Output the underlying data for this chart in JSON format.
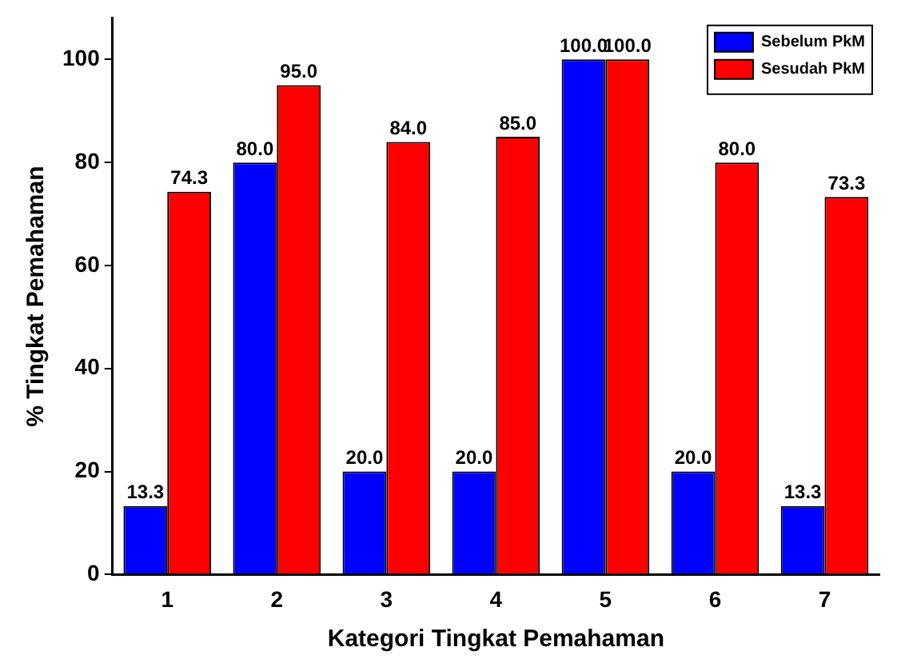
{
  "chart_data": {
    "type": "bar",
    "xlabel": "Kategori Tingkat Pemahaman",
    "ylabel": "% Tingkat Pemahaman",
    "categories": [
      "1",
      "2",
      "3",
      "4",
      "5",
      "6",
      "7"
    ],
    "series": [
      {
        "name": "Sebelum PkM",
        "color": "#0000ff",
        "values": [
          13.3,
          80.0,
          20.0,
          20.0,
          100.0,
          20.0,
          13.3
        ],
        "value_labels": [
          "13.3",
          "80.0",
          "20.0",
          "20.0",
          "100.0",
          "20.0",
          "13.3"
        ]
      },
      {
        "name": "Sesudah PkM",
        "color": "#ff0000",
        "values": [
          74.3,
          95.0,
          84.0,
          85.0,
          100.0,
          80.0,
          73.3
        ],
        "value_labels": [
          "74.3",
          "95.0",
          "84.0",
          "85.0",
          "100.0",
          "80.0",
          "73.3"
        ]
      }
    ],
    "ylim": [
      0,
      108
    ],
    "yticks": [
      0,
      20,
      40,
      60,
      80,
      100
    ],
    "grid": false,
    "legend": "top right"
  }
}
